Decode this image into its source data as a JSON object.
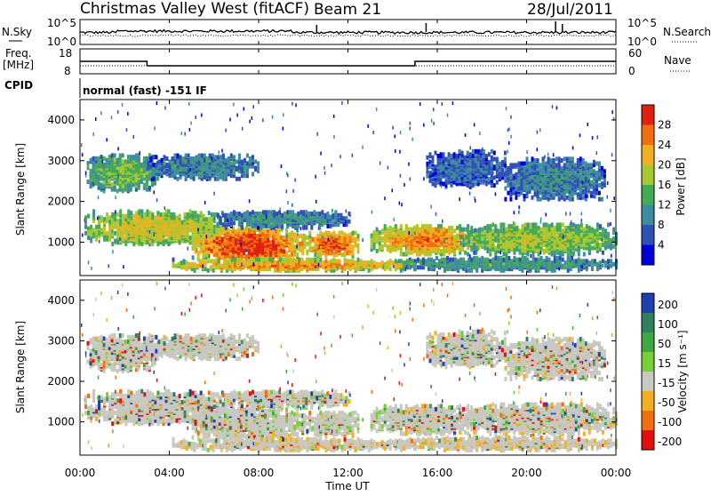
{
  "header": {
    "title": "Christmas Valley West (fitACF)",
    "beam": "Beam 21",
    "date": "28/Jul/2011"
  },
  "side_labels": {
    "nsky": "N.Sky",
    "nsearch": "N.Search",
    "freq_line1": "Freq.",
    "freq_line2": "[MHz]",
    "nave": "Nave",
    "cpid": "CPID",
    "cpid_value": "normal (fast) -151 IF"
  },
  "chart_data": [
    {
      "type": "line",
      "panel": "noise",
      "left_ticks": [
        "10^5",
        "10^0"
      ],
      "right_ticks": [
        "10^5",
        "10^0"
      ],
      "series": [
        {
          "name": "N.Sky",
          "style": "solid"
        },
        {
          "name": "N.Search",
          "style": "dotted"
        }
      ]
    },
    {
      "type": "line",
      "panel": "frequency",
      "left_ticks": [
        "18",
        "8"
      ],
      "right_ticks": [
        "60",
        "0"
      ],
      "series": [
        {
          "name": "Freq.",
          "style": "solid",
          "x": [
            0,
            3,
            3,
            15,
            15,
            24
          ],
          "values": [
            13,
            13,
            10.5,
            10.5,
            13,
            13
          ]
        },
        {
          "name": "Nave",
          "style": "dotted"
        }
      ]
    },
    {
      "type": "heatmap",
      "panel": "power",
      "ylabel": "Slant Range [km]",
      "y_ticks": [
        "1000",
        "2000",
        "3000",
        "4000"
      ],
      "ylim": [
        180,
        4500
      ],
      "colorbar_label": "Power [dB]",
      "colorbar_ticks": [
        "4",
        "8",
        "12",
        "16",
        "20",
        "24",
        "28"
      ],
      "colorbar_range": [
        0,
        32
      ],
      "colors": [
        "#0000dd",
        "#3050b8",
        "#3d8ca0",
        "#44aa55",
        "#a8c830",
        "#f0b020",
        "#f07010",
        "#e02010"
      ]
    },
    {
      "type": "heatmap",
      "panel": "velocity",
      "ylabel": "Slant Range [km]",
      "y_ticks": [
        "1000",
        "2000",
        "3000",
        "4000"
      ],
      "ylim": [
        180,
        4500
      ],
      "colorbar_label": "Velocity [m s⁻¹]",
      "colorbar_ticks": [
        "200",
        "100",
        "50",
        "15",
        "-15",
        "-50",
        "-100",
        "-200"
      ],
      "colors": [
        "#2040b0",
        "#308060",
        "#3fa840",
        "#78d038",
        "#c8c8c0",
        "#f0b020",
        "#f07010",
        "#e01010"
      ]
    }
  ],
  "time_axis": {
    "ticks": [
      "00:00",
      "04:00",
      "08:00",
      "12:00",
      "16:00",
      "20:00",
      "00:00"
    ],
    "label": "Time UT"
  },
  "regions": [
    {
      "t": [
        0.3,
        3.5
      ],
      "r": [
        2200,
        3100
      ],
      "p": 14
    },
    {
      "t": [
        0.2,
        6.5
      ],
      "r": [
        900,
        1700
      ],
      "p": 18
    },
    {
      "t": [
        5.0,
        10.0
      ],
      "r": [
        450,
        1300
      ],
      "p": 26
    },
    {
      "t": [
        10.0,
        12.5
      ],
      "r": [
        600,
        1200
      ],
      "p": 24
    },
    {
      "t": [
        6.0,
        12.0
      ],
      "r": [
        1300,
        1700
      ],
      "p": 10
    },
    {
      "t": [
        3.0,
        8.0
      ],
      "r": [
        2500,
        3100
      ],
      "p": 9
    },
    {
      "t": [
        13.0,
        18.0
      ],
      "r": [
        650,
        1350
      ],
      "p": 22
    },
    {
      "t": [
        17.0,
        24.0
      ],
      "r": [
        650,
        1400
      ],
      "p": 16
    },
    {
      "t": [
        14.0,
        24.0
      ],
      "r": [
        250,
        560
      ],
      "p": 11
    },
    {
      "t": [
        19.0,
        23.5
      ],
      "r": [
        2000,
        3000
      ],
      "p": 9
    },
    {
      "t": [
        15.5,
        19.0
      ],
      "r": [
        2300,
        3200
      ],
      "p": 7
    },
    {
      "t": [
        4.0,
        15.0
      ],
      "r": [
        250,
        520
      ],
      "p": 22
    }
  ]
}
